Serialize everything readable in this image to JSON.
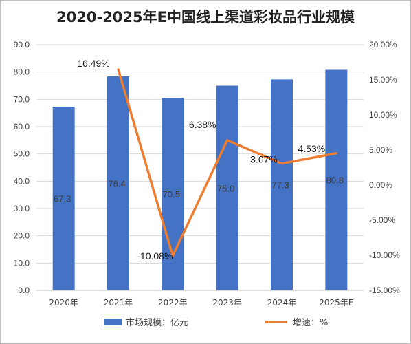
{
  "title": "2020-2025年E中国线上渠道彩妆品行业规模",
  "colors": {
    "bar": "#4472C4",
    "line": "#ED7D31",
    "grid": "#d9d9d9",
    "axis": "#bfbfbf"
  },
  "chart_data": {
    "type": "bar",
    "categories": [
      "2020年",
      "2021年",
      "2022年",
      "2023年",
      "2024年",
      "2025年E"
    ],
    "series": [
      {
        "name": "市场规模：亿元",
        "type": "bar",
        "axis": "left",
        "values": [
          67.3,
          78.4,
          70.5,
          75.0,
          77.3,
          80.8
        ],
        "labels": [
          "67.3",
          "78.4",
          "70.5",
          "75.0",
          "77.3",
          "80.8"
        ]
      },
      {
        "name": "增速：%",
        "type": "line",
        "axis": "right",
        "values": [
          null,
          16.49,
          -10.08,
          6.38,
          3.07,
          4.53
        ],
        "labels": [
          "",
          "16.49%",
          "-10.08%",
          "6.38%",
          "3.07%",
          "4.53%"
        ]
      }
    ],
    "y_left": {
      "min": 0,
      "max": 90,
      "step": 10,
      "tick_labels": [
        "0.0",
        "10.0",
        "20.0",
        "30.0",
        "40.0",
        "50.0",
        "60.0",
        "70.0",
        "80.0",
        "90.0"
      ]
    },
    "y_right": {
      "min": -15,
      "max": 20,
      "step": 5,
      "tick_labels": [
        "-15.00%",
        "-10.00%",
        "-5.00%",
        "0.00%",
        "5.00%",
        "10.00%",
        "15.00%",
        "20.00%"
      ]
    },
    "grid": true,
    "legend_position": "bottom"
  }
}
